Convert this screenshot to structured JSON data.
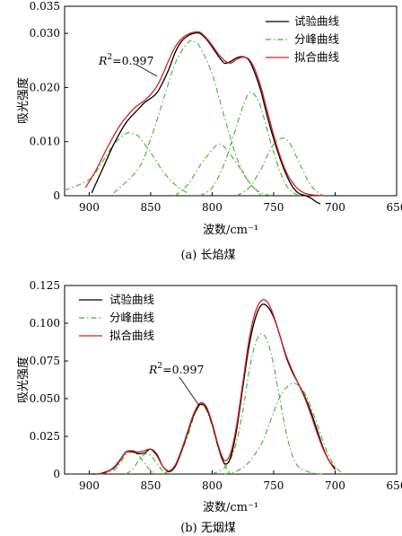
{
  "chart_data": [
    {
      "type": "line",
      "caption": "(a)  长焰煤",
      "xlabel": "波数/cm⁻¹",
      "ylabel": "吸光强度",
      "xlim": [
        920,
        650
      ],
      "ylim": [
        0,
        0.035
      ],
      "x_reversed": true,
      "xticks": [
        900,
        850,
        800,
        750,
        700,
        650
      ],
      "yticks": [
        0,
        0.01,
        0.02,
        0.03,
        0.035
      ],
      "ytick_labels": [
        "0",
        "0.010",
        "0.020",
        "0.030",
        "0.035"
      ],
      "annotation": {
        "prefix": "R",
        "sup": "2",
        "rest": "=0.997",
        "x": 818,
        "y": 0.0293
      },
      "legend": {
        "placement": "top-right"
      },
      "colors": {
        "experimental": "#000000",
        "peaks": "#44b02a",
        "fit": "#d42020"
      },
      "series": [
        {
          "name": "试验曲线",
          "role": "experimental",
          "x": [
            898,
            890,
            880,
            870,
            860,
            855,
            850,
            845,
            840,
            835,
            830,
            825,
            820,
            815,
            810,
            805,
            800,
            795,
            790,
            785,
            780,
            775,
            770,
            765,
            760,
            755,
            750,
            745,
            740,
            735,
            730,
            725,
            720,
            715,
            712
          ],
          "y": [
            0.0005,
            0.0045,
            0.0095,
            0.0135,
            0.016,
            0.0172,
            0.018,
            0.019,
            0.021,
            0.0235,
            0.0265,
            0.0285,
            0.0295,
            0.03,
            0.03,
            0.029,
            0.0275,
            0.0258,
            0.0245,
            0.0248,
            0.0255,
            0.0257,
            0.025,
            0.0225,
            0.019,
            0.0145,
            0.0105,
            0.007,
            0.004,
            0.0018,
            0.0005,
            0.0001,
            -0.0004,
            -0.0012,
            -0.0015
          ]
        },
        {
          "name": "分峰曲线",
          "role": "peak",
          "x": [
            920,
            900,
            890,
            880,
            870,
            865,
            860,
            850,
            840,
            830,
            820
          ],
          "y": [
            0.001,
            0.003,
            0.006,
            0.0095,
            0.0115,
            0.0115,
            0.011,
            0.008,
            0.0045,
            0.002,
            0.0005
          ]
        },
        {
          "name": "",
          "role": "peak",
          "x": [
            880,
            860,
            850,
            840,
            830,
            820,
            815,
            810,
            800,
            790,
            780,
            770,
            760,
            750
          ],
          "y": [
            0.0005,
            0.005,
            0.0105,
            0.0175,
            0.0245,
            0.0282,
            0.0285,
            0.0275,
            0.0225,
            0.0145,
            0.007,
            0.0025,
            0.0005,
            0.0
          ],
          "bump": [
            0.0,
            0.0,
            0.0,
            0.0,
            0.0,
            0.0,
            0.0,
            0.0,
            0.0,
            0.0,
            0.0,
            0.0,
            0.0,
            0.0
          ]
        },
        {
          "name": "",
          "role": "peak",
          "x": [
            830,
            820,
            810,
            800,
            795,
            790,
            780,
            770,
            760
          ],
          "y": [
            0.0,
            0.002,
            0.0055,
            0.0085,
            0.0095,
            0.009,
            0.006,
            0.0025,
            0.0
          ]
        },
        {
          "name": "",
          "role": "peak",
          "x": [
            810,
            800,
            790,
            780,
            775,
            770,
            765,
            760,
            750,
            740,
            730
          ],
          "y": [
            0.0,
            0.0015,
            0.006,
            0.013,
            0.0165,
            0.019,
            0.0185,
            0.016,
            0.008,
            0.002,
            0.0
          ]
        },
        {
          "name": "",
          "role": "peak",
          "x": [
            780,
            770,
            760,
            755,
            750,
            745,
            740,
            735,
            730,
            720,
            710
          ],
          "y": [
            0.0,
            0.0015,
            0.005,
            0.0075,
            0.0095,
            0.0105,
            0.0105,
            0.009,
            0.0065,
            0.002,
            0.0
          ]
        },
        {
          "name": "拟合曲线",
          "role": "fit",
          "x": [
            903,
            895,
            885,
            875,
            865,
            860,
            855,
            850,
            845,
            840,
            835,
            830,
            825,
            820,
            815,
            810,
            805,
            800,
            795,
            790,
            785,
            780,
            775,
            770,
            765,
            760,
            755,
            750,
            745,
            740,
            735,
            730,
            725,
            720,
            715,
            710
          ],
          "y": [
            0.0015,
            0.0045,
            0.009,
            0.013,
            0.0158,
            0.0168,
            0.0176,
            0.0187,
            0.0202,
            0.0225,
            0.0252,
            0.0275,
            0.029,
            0.0298,
            0.0302,
            0.0302,
            0.0292,
            0.0278,
            0.0262,
            0.025,
            0.0245,
            0.0252,
            0.0256,
            0.0252,
            0.0232,
            0.0198,
            0.0155,
            0.0112,
            0.0075,
            0.0045,
            0.0025,
            0.0012,
            0.0005,
            0.0002,
            0.0001,
            0.0
          ]
        }
      ]
    },
    {
      "type": "line",
      "caption": "(b)  无烟煤",
      "xlabel": "波数/cm⁻¹",
      "ylabel": "吸光强度",
      "xlim": [
        920,
        650
      ],
      "ylim": [
        0,
        0.125
      ],
      "x_reversed": true,
      "xticks": [
        900,
        850,
        800,
        750,
        700,
        650
      ],
      "yticks": [
        0,
        0.025,
        0.05,
        0.075,
        0.1,
        0.125
      ],
      "ytick_labels": [
        "0",
        "0.025",
        "0.050",
        "0.075",
        "0.100",
        "0.125"
      ],
      "annotation": {
        "prefix": "R",
        "sup": "2",
        "rest": "=0.997",
        "x": 812,
        "y": 0.0615
      },
      "legend": {
        "placement": "top-left"
      },
      "colors": {
        "experimental": "#000000",
        "peaks": "#44b02a",
        "fit": "#d42020"
      },
      "series": [
        {
          "name": "试验曲线",
          "role": "experimental",
          "x": [
            898,
            890,
            880,
            875,
            870,
            865,
            860,
            855,
            850,
            845,
            840,
            835,
            830,
            825,
            820,
            815,
            810,
            805,
            800,
            795,
            790,
            785,
            780,
            775,
            770,
            765,
            760,
            755,
            750,
            745,
            740,
            735,
            730,
            725,
            720,
            715,
            710,
            705,
            700
          ],
          "y": [
            0.0,
            0.0005,
            0.004,
            0.009,
            0.0145,
            0.0148,
            0.0135,
            0.014,
            0.0165,
            0.013,
            0.005,
            0.0015,
            0.005,
            0.015,
            0.027,
            0.039,
            0.046,
            0.044,
            0.033,
            0.018,
            0.007,
            0.011,
            0.03,
            0.058,
            0.085,
            0.103,
            0.112,
            0.111,
            0.104,
            0.092,
            0.078,
            0.068,
            0.06,
            0.052,
            0.042,
            0.03,
            0.018,
            0.009,
            0.003
          ]
        },
        {
          "name": "分峰曲线",
          "role": "peak",
          "x": [
            890,
            880,
            875,
            870,
            865,
            860,
            855,
            850,
            845
          ],
          "y": [
            0.0,
            0.0025,
            0.007,
            0.013,
            0.0145,
            0.0125,
            0.007,
            0.0025,
            0.0
          ]
        },
        {
          "name": "",
          "role": "peak",
          "x": [
            870,
            865,
            860,
            855,
            850,
            845,
            840,
            835
          ],
          "y": [
            0.0,
            0.003,
            0.0085,
            0.013,
            0.0125,
            0.007,
            0.002,
            0.0
          ]
        },
        {
          "name": "",
          "role": "peak",
          "x": [
            840,
            830,
            820,
            815,
            810,
            805,
            800,
            795,
            790,
            785
          ],
          "y": [
            0.0,
            0.006,
            0.025,
            0.038,
            0.045,
            0.043,
            0.032,
            0.017,
            0.006,
            0.0
          ]
        },
        {
          "name": "",
          "role": "peak",
          "x": [
            800,
            790,
            785,
            780,
            775,
            770,
            765,
            760,
            755,
            750,
            745,
            740,
            735,
            730,
            720,
            710
          ],
          "y": [
            0.0,
            0.004,
            0.01,
            0.022,
            0.042,
            0.068,
            0.086,
            0.093,
            0.088,
            0.072,
            0.05,
            0.028,
            0.013,
            0.005,
            0.001,
            0.0
          ]
        },
        {
          "name": "",
          "role": "peak",
          "x": [
            790,
            780,
            770,
            760,
            755,
            750,
            745,
            740,
            735,
            730,
            725,
            720,
            715,
            710,
            705,
            700,
            695
          ],
          "y": [
            0.0,
            0.002,
            0.008,
            0.02,
            0.03,
            0.041,
            0.051,
            0.057,
            0.06,
            0.059,
            0.054,
            0.045,
            0.034,
            0.022,
            0.012,
            0.005,
            0.001
          ]
        },
        {
          "name": "拟合曲线",
          "role": "fit",
          "x": [
            895,
            888,
            880,
            875,
            870,
            865,
            860,
            855,
            850,
            845,
            840,
            835,
            830,
            825,
            820,
            815,
            810,
            805,
            800,
            795,
            790,
            785,
            780,
            775,
            770,
            765,
            760,
            755,
            750,
            745,
            740,
            735,
            730,
            725,
            720,
            715,
            710,
            705,
            700
          ],
          "y": [
            0.0,
            0.0005,
            0.0045,
            0.0095,
            0.0148,
            0.0155,
            0.0145,
            0.0155,
            0.0165,
            0.012,
            0.005,
            0.002,
            0.006,
            0.016,
            0.028,
            0.04,
            0.047,
            0.045,
            0.034,
            0.019,
            0.009,
            0.014,
            0.033,
            0.061,
            0.089,
            0.107,
            0.115,
            0.114,
            0.105,
            0.092,
            0.079,
            0.069,
            0.06,
            0.051,
            0.04,
            0.028,
            0.017,
            0.009,
            0.004
          ]
        }
      ]
    }
  ]
}
